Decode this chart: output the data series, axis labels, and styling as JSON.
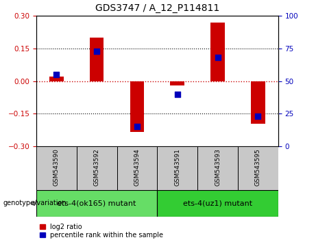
{
  "title": "GDS3747 / A_12_P114811",
  "samples": [
    "GSM543590",
    "GSM543592",
    "GSM543594",
    "GSM543591",
    "GSM543593",
    "GSM543595"
  ],
  "log2_ratio": [
    0.02,
    0.2,
    -0.235,
    -0.02,
    0.27,
    -0.195
  ],
  "percentile_rank": [
    55,
    73,
    15,
    40,
    68,
    23
  ],
  "ylim_left": [
    -0.3,
    0.3
  ],
  "ylim_right": [
    0,
    100
  ],
  "yticks_left": [
    -0.3,
    -0.15,
    0,
    0.15,
    0.3
  ],
  "yticks_right": [
    0,
    25,
    50,
    75,
    100
  ],
  "groups": [
    {
      "label": "ets-4(ok165) mutant",
      "indices": [
        0,
        1,
        2
      ],
      "color": "#66DD66"
    },
    {
      "label": "ets-4(uz1) mutant",
      "indices": [
        3,
        4,
        5
      ],
      "color": "#33CC33"
    }
  ],
  "bar_color": "#CC0000",
  "dot_color": "#0000BB",
  "hline_color": "#CC0000",
  "bg_color": "#FFFFFF",
  "sample_box_color": "#C8C8C8",
  "bar_width": 0.35,
  "dot_size": 30,
  "left_tick_color": "#CC0000",
  "right_tick_color": "#0000BB",
  "title_fontsize": 10,
  "tick_fontsize": 7.5,
  "sample_fontsize": 6.5,
  "group_fontsize": 8,
  "legend_fontsize": 7,
  "genotype_label": "genotype/variation",
  "legend_items": [
    "log2 ratio",
    "percentile rank within the sample"
  ]
}
